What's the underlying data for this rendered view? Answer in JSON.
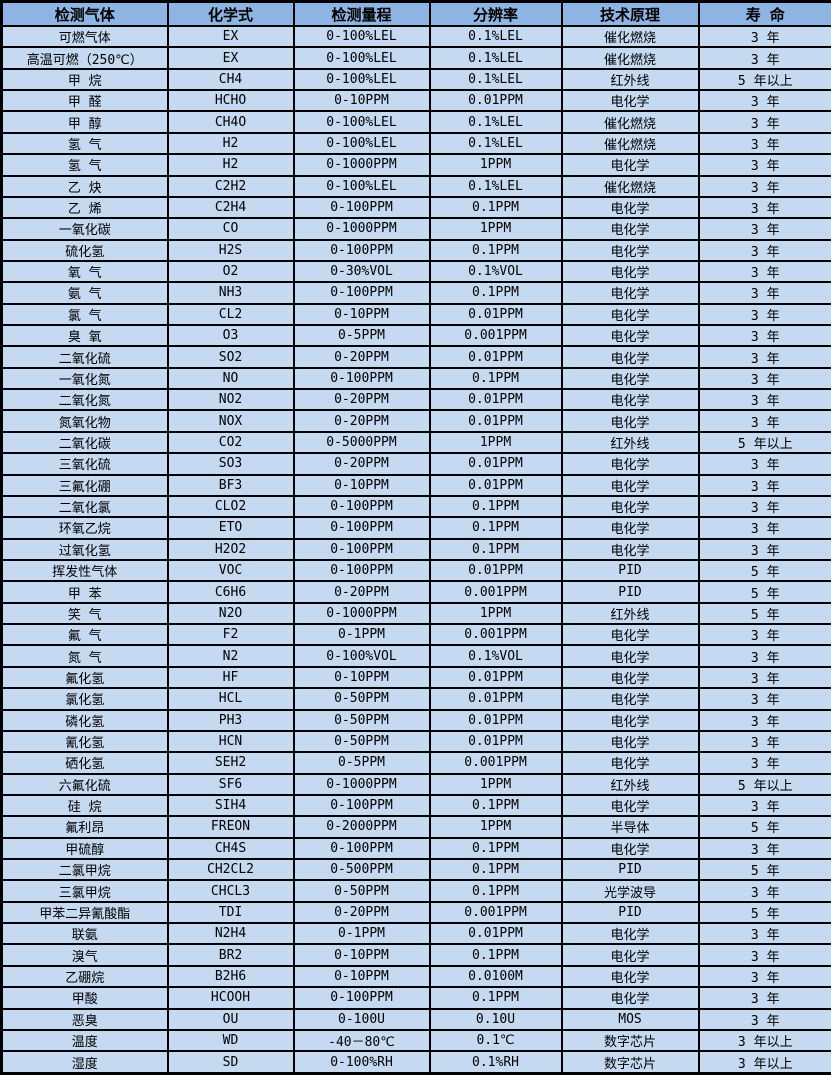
{
  "table": {
    "headers": [
      "检测气体",
      "化学式",
      "检测量程",
      "分辨率",
      "技术原理",
      "寿 命"
    ],
    "column_keys": [
      "gas_name",
      "formula",
      "range",
      "resolution",
      "principle",
      "lifespan"
    ],
    "rows": [
      {
        "gas_name": "可燃气体",
        "formula": "EX",
        "range": "0-100%LEL",
        "resolution": "0.1%LEL",
        "principle": "催化燃烧",
        "lifespan": "3 年"
      },
      {
        "gas_name": "高温可燃（250℃）",
        "formula": "EX",
        "range": "0-100%LEL",
        "resolution": "0.1%LEL",
        "principle": "催化燃烧",
        "lifespan": "3 年"
      },
      {
        "gas_name": "甲 烷",
        "formula": "CH4",
        "range": "0-100%LEL",
        "resolution": "0.1%LEL",
        "principle": "红外线",
        "lifespan": "5 年以上"
      },
      {
        "gas_name": "甲 醛",
        "formula": "HCHO",
        "range": "0-10PPM",
        "resolution": "0.01PPM",
        "principle": "电化学",
        "lifespan": "3 年"
      },
      {
        "gas_name": "甲 醇",
        "formula": "CH4O",
        "range": "0-100%LEL",
        "resolution": "0.1%LEL",
        "principle": "催化燃烧",
        "lifespan": "3 年"
      },
      {
        "gas_name": "氢 气",
        "formula": "H2",
        "range": "0-100%LEL",
        "resolution": "0.1%LEL",
        "principle": "催化燃烧",
        "lifespan": "3 年"
      },
      {
        "gas_name": "氢 气",
        "formula": "H2",
        "range": "0-1000PPM",
        "resolution": "1PPM",
        "principle": "电化学",
        "lifespan": "3 年"
      },
      {
        "gas_name": "乙 炔",
        "formula": "C2H2",
        "range": "0-100%LEL",
        "resolution": "0.1%LEL",
        "principle": "催化燃烧",
        "lifespan": "3 年"
      },
      {
        "gas_name": "乙 烯",
        "formula": "C2H4",
        "range": "0-100PPM",
        "resolution": "0.1PPM",
        "principle": "电化学",
        "lifespan": "3 年"
      },
      {
        "gas_name": "一氧化碳",
        "formula": "CO",
        "range": "0-1000PPM",
        "resolution": "1PPM",
        "principle": "电化学",
        "lifespan": "3 年"
      },
      {
        "gas_name": "硫化氢",
        "formula": "H2S",
        "range": "0-100PPM",
        "resolution": "0.1PPM",
        "principle": "电化学",
        "lifespan": "3 年"
      },
      {
        "gas_name": "氧 气",
        "formula": "O2",
        "range": "0-30%VOL",
        "resolution": "0.1%VOL",
        "principle": "电化学",
        "lifespan": "3 年"
      },
      {
        "gas_name": "氨 气",
        "formula": "NH3",
        "range": "0-100PPM",
        "resolution": "0.1PPM",
        "principle": "电化学",
        "lifespan": "3 年"
      },
      {
        "gas_name": "氯 气",
        "formula": "CL2",
        "range": "0-10PPM",
        "resolution": "0.01PPM",
        "principle": "电化学",
        "lifespan": "3 年"
      },
      {
        "gas_name": "臭 氧",
        "formula": "O3",
        "range": "0-5PPM",
        "resolution": "0.001PPM",
        "principle": "电化学",
        "lifespan": "3 年"
      },
      {
        "gas_name": "二氧化硫",
        "formula": "SO2",
        "range": "0-20PPM",
        "resolution": "0.01PPM",
        "principle": "电化学",
        "lifespan": "3 年"
      },
      {
        "gas_name": "一氧化氮",
        "formula": "NO",
        "range": "0-100PPM",
        "resolution": "0.1PPM",
        "principle": "电化学",
        "lifespan": "3 年"
      },
      {
        "gas_name": "二氧化氮",
        "formula": "NO2",
        "range": "0-20PPM",
        "resolution": "0.01PPM",
        "principle": "电化学",
        "lifespan": "3 年"
      },
      {
        "gas_name": "氮氧化物",
        "formula": "NOX",
        "range": "0-20PPM",
        "resolution": "0.01PPM",
        "principle": "电化学",
        "lifespan": "3 年"
      },
      {
        "gas_name": "二氧化碳",
        "formula": "CO2",
        "range": "0-5000PPM",
        "resolution": "1PPM",
        "principle": "红外线",
        "lifespan": "5 年以上"
      },
      {
        "gas_name": "三氧化硫",
        "formula": "SO3",
        "range": "0-20PPM",
        "resolution": "0.01PPM",
        "principle": "电化学",
        "lifespan": "3 年"
      },
      {
        "gas_name": "三氟化硼",
        "formula": "BF3",
        "range": "0-10PPM",
        "resolution": "0.01PPM",
        "principle": "电化学",
        "lifespan": "3 年"
      },
      {
        "gas_name": "二氧化氯",
        "formula": "CLO2",
        "range": "0-100PPM",
        "resolution": "0.1PPM",
        "principle": "电化学",
        "lifespan": "3 年"
      },
      {
        "gas_name": "环氧乙烷",
        "formula": "ETO",
        "range": "0-100PPM",
        "resolution": "0.1PPM",
        "principle": "电化学",
        "lifespan": "3 年"
      },
      {
        "gas_name": "过氧化氢",
        "formula": "H2O2",
        "range": "0-100PPM",
        "resolution": "0.1PPM",
        "principle": "电化学",
        "lifespan": "3 年"
      },
      {
        "gas_name": "挥发性气体",
        "formula": "VOC",
        "range": "0-100PPM",
        "resolution": "0.01PPM",
        "principle": "PID",
        "lifespan": "5 年"
      },
      {
        "gas_name": "甲 苯",
        "formula": "C6H6",
        "range": "0-20PPM",
        "resolution": "0.001PPM",
        "principle": "PID",
        "lifespan": "5 年"
      },
      {
        "gas_name": "笑 气",
        "formula": "N2O",
        "range": "0-1000PPM",
        "resolution": "1PPM",
        "principle": "红外线",
        "lifespan": "5 年"
      },
      {
        "gas_name": "氟 气",
        "formula": "F2",
        "range": "0-1PPM",
        "resolution": "0.001PPM",
        "principle": "电化学",
        "lifespan": "3 年"
      },
      {
        "gas_name": "氮 气",
        "formula": "N2",
        "range": "0-100%VOL",
        "resolution": "0.1%VOL",
        "principle": "电化学",
        "lifespan": "3 年"
      },
      {
        "gas_name": "氟化氢",
        "formula": "HF",
        "range": "0-10PPM",
        "resolution": "0.01PPM",
        "principle": "电化学",
        "lifespan": "3 年"
      },
      {
        "gas_name": "氯化氢",
        "formula": "HCL",
        "range": "0-50PPM",
        "resolution": "0.01PPM",
        "principle": "电化学",
        "lifespan": "3 年"
      },
      {
        "gas_name": "磷化氢",
        "formula": "PH3",
        "range": "0-50PPM",
        "resolution": "0.01PPM",
        "principle": "电化学",
        "lifespan": "3 年"
      },
      {
        "gas_name": "氰化氢",
        "formula": "HCN",
        "range": "0-50PPM",
        "resolution": "0.01PPM",
        "principle": "电化学",
        "lifespan": "3 年"
      },
      {
        "gas_name": "硒化氢",
        "formula": "SEH2",
        "range": "0-5PPM",
        "resolution": "0.001PPM",
        "principle": "电化学",
        "lifespan": "3 年"
      },
      {
        "gas_name": "六氟化硫",
        "formula": "SF6",
        "range": "0-1000PPM",
        "resolution": "1PPM",
        "principle": "红外线",
        "lifespan": "5 年以上"
      },
      {
        "gas_name": "硅 烷",
        "formula": "SIH4",
        "range": "0-100PPM",
        "resolution": "0.1PPM",
        "principle": "电化学",
        "lifespan": "3 年"
      },
      {
        "gas_name": "氟利昂",
        "formula": "FREON",
        "range": "0-2000PPM",
        "resolution": "1PPM",
        "principle": "半导体",
        "lifespan": "5 年"
      },
      {
        "gas_name": "甲硫醇",
        "formula": "CH4S",
        "range": "0-100PPM",
        "resolution": "0.1PPM",
        "principle": "电化学",
        "lifespan": "3 年"
      },
      {
        "gas_name": "二氯甲烷",
        "formula": "CH2CL2",
        "range": "0-500PPM",
        "resolution": "0.1PPM",
        "principle": "PID",
        "lifespan": "5 年"
      },
      {
        "gas_name": "三氯甲烷",
        "formula": "CHCL3",
        "range": "0-50PPM",
        "resolution": "0.1PPM",
        "principle": "光学波导",
        "lifespan": "3 年"
      },
      {
        "gas_name": "甲苯二异氰酸酯",
        "formula": "TDI",
        "range": "0-20PPM",
        "resolution": "0.001PPM",
        "principle": "PID",
        "lifespan": "5 年"
      },
      {
        "gas_name": "联氨",
        "formula": "N2H4",
        "range": "0-1PPM",
        "resolution": "0.01PPM",
        "principle": "电化学",
        "lifespan": "3 年"
      },
      {
        "gas_name": "溴气",
        "formula": "BR2",
        "range": "0-10PPM",
        "resolution": "0.1PPM",
        "principle": "电化学",
        "lifespan": "3 年"
      },
      {
        "gas_name": "乙硼烷",
        "formula": "B2H6",
        "range": "0-10PPM",
        "resolution": "0.0100M",
        "principle": "电化学",
        "lifespan": "3 年"
      },
      {
        "gas_name": "甲酸",
        "formula": "HCOOH",
        "range": "0-100PPM",
        "resolution": "0.1PPM",
        "principle": "电化学",
        "lifespan": "3 年"
      },
      {
        "gas_name": "恶臭",
        "formula": "OU",
        "range": "0-100U",
        "resolution": "0.10U",
        "principle": "MOS",
        "lifespan": "3 年"
      },
      {
        "gas_name": "温度",
        "formula": "WD",
        "range": "-40－80℃",
        "resolution": "0.1℃",
        "principle": "数字芯片",
        "lifespan": "3 年以上"
      },
      {
        "gas_name": "湿度",
        "formula": "SD",
        "range": "0-100%RH",
        "resolution": "0.1%RH",
        "principle": "数字芯片",
        "lifespan": "3 年以上"
      }
    ],
    "colors": {
      "header_bg": "#8DB4E2",
      "row_bg": "#C5D9F1",
      "border": "#000000"
    }
  }
}
